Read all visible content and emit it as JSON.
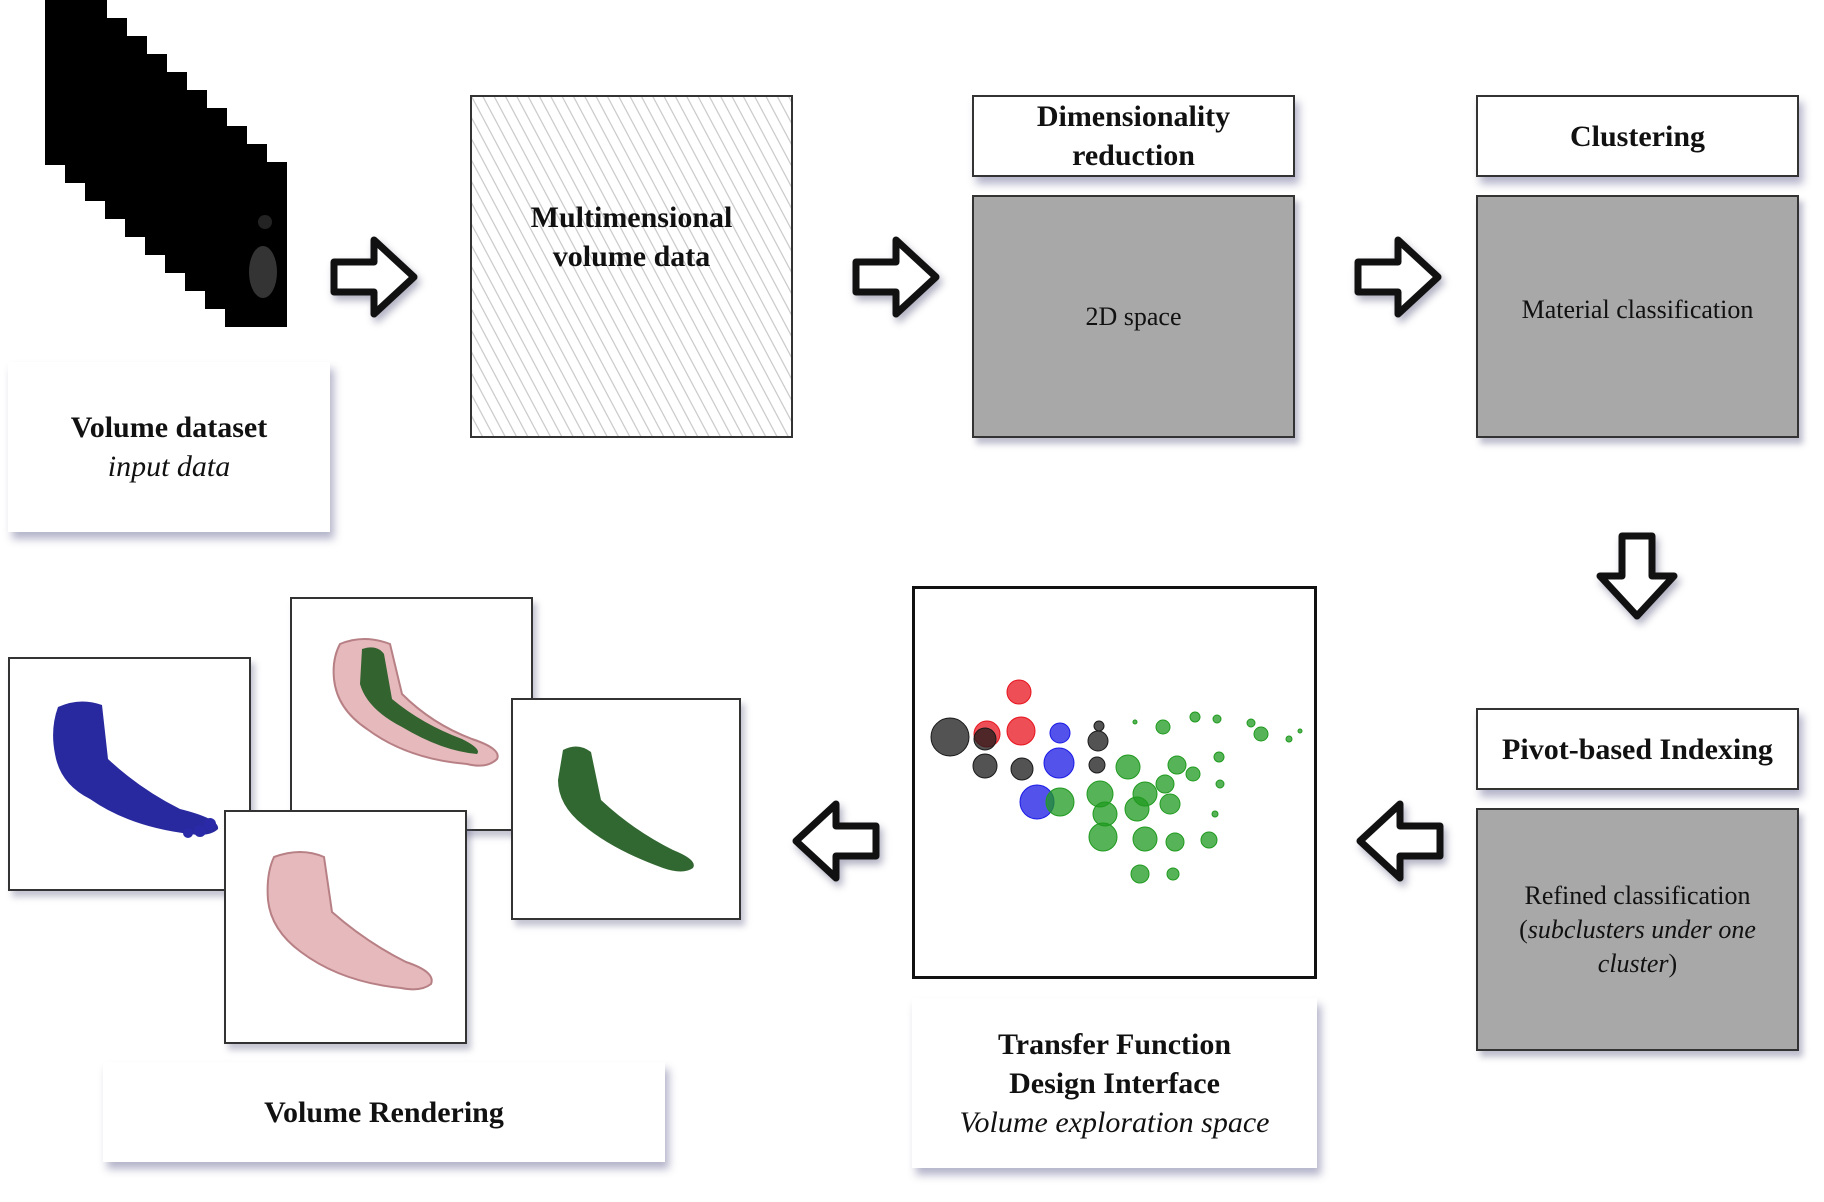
{
  "stages": {
    "volume_dataset": {
      "title": "Volume dataset",
      "subtitle": "input data"
    },
    "multidimensional": {
      "line1": "Multimensional",
      "line2": "volume data"
    },
    "dimensionality": {
      "header_line1": "Dimensionality",
      "header_line2": "reduction",
      "content": "2D space"
    },
    "clustering": {
      "header": "Clustering",
      "content": "Material classification"
    },
    "pivot": {
      "header": "Pivot-based Indexing",
      "content_line1": "Refined classification",
      "content_open": "(",
      "content_italic_1": "subclusters under one",
      "content_italic_2": "cluster",
      "content_close": ")"
    },
    "transfer_function": {
      "title_line1": "Transfer Function",
      "title_line2": "Design Interface",
      "subtitle": "Volume exploration space"
    },
    "volume_rendering": {
      "title": "Volume Rendering"
    }
  },
  "colors": {
    "gray_box": "#a8a8a8",
    "cluster_black": "#1a1a1a",
    "cluster_red": "#e8141e",
    "cluster_blue": "#1a1ae6",
    "cluster_green": "#1f9a1f",
    "foot_blue": "#1e1e9a",
    "foot_pink": "#e4b2b6",
    "foot_green": "#1f5a1f"
  },
  "icons": [
    "right-arrow-icon",
    "down-arrow-icon",
    "left-arrow-icon",
    "ct-slice-stack-icon",
    "foot-render-icon"
  ]
}
